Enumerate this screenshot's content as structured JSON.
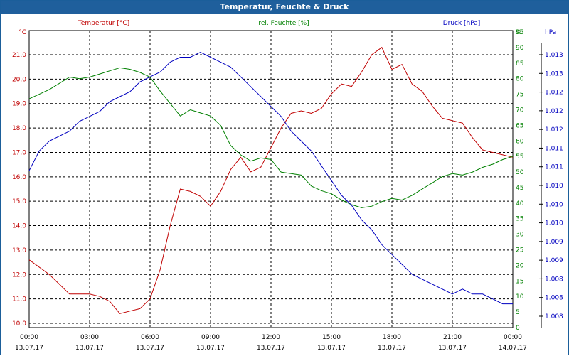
{
  "title": "Temperatur, Feuchte & Druck",
  "colors": {
    "temperature": "#c00000",
    "humidity": "#008000",
    "pressure": "#0000c0",
    "title_bar": "#1f5f9c"
  },
  "chart_data": {
    "type": "line",
    "title": "Temperatur, Feuchte & Druck",
    "grid": true,
    "x_ticks": [
      {
        "time": "00:00",
        "date": "13.07.17"
      },
      {
        "time": "03:00",
        "date": "13.07.17"
      },
      {
        "time": "06:00",
        "date": "13.07.17"
      },
      {
        "time": "09:00",
        "date": "13.07.17"
      },
      {
        "time": "12:00",
        "date": "13.07.17"
      },
      {
        "time": "15:00",
        "date": "13.07.17"
      },
      {
        "time": "18:00",
        "date": "13.07.17"
      },
      {
        "time": "21:00",
        "date": "13.07.17"
      },
      {
        "time": "00:00",
        "date": "14.07.17"
      }
    ],
    "axes": {
      "temperature": {
        "label": "Temperatur [°C]",
        "unit": "°C",
        "range": [
          10.0,
          21.0
        ],
        "ticks": [
          "10.0",
          "11.0",
          "12.0",
          "13.0",
          "14.0",
          "15.0",
          "16.0",
          "17.0",
          "18.0",
          "19.0",
          "20.0",
          "21.0"
        ]
      },
      "humidity": {
        "label": "rel. Feuchte [%]",
        "unit": "%",
        "range": [
          0,
          95
        ],
        "ticks": [
          "0",
          "5",
          "10",
          "15",
          "20",
          "25",
          "30",
          "35",
          "40",
          "45",
          "50",
          "55",
          "60",
          "65",
          "70",
          "75",
          "80",
          "85",
          "90",
          "95"
        ]
      },
      "pressure": {
        "label": "Druck [hPa]",
        "unit": "hPa",
        "ticks": [
          "1.008",
          "1.008",
          "1.008",
          "1.009",
          "1.009",
          "1.010",
          "1.010",
          "1.010",
          "1.011",
          "1.011",
          "1.012",
          "1.012",
          "1.012",
          "1.013",
          "1.013"
        ]
      }
    },
    "series": [
      {
        "key": "temperature",
        "name": "Temperatur [°C]",
        "x": [
          "13.07.17 00:00",
          "13.07.17 00:30",
          "13.07.17 01:00",
          "13.07.17 01:30",
          "13.07.17 02:00",
          "13.07.17 02:30",
          "13.07.17 03:00",
          "13.07.17 03:30",
          "13.07.17 04:00",
          "13.07.17 04:30",
          "13.07.17 05:00",
          "13.07.17 05:30",
          "13.07.17 06:00",
          "13.07.17 06:30",
          "13.07.17 07:00",
          "13.07.17 07:30",
          "13.07.17 08:00",
          "13.07.17 08:30",
          "13.07.17 09:00",
          "13.07.17 09:30",
          "13.07.17 10:00",
          "13.07.17 10:30",
          "13.07.17 11:00",
          "13.07.17 11:30",
          "13.07.17 12:00",
          "13.07.17 12:30",
          "13.07.17 13:00",
          "13.07.17 13:30",
          "13.07.17 14:00",
          "13.07.17 14:30",
          "13.07.17 15:00",
          "13.07.17 15:30",
          "13.07.17 16:00",
          "13.07.17 16:30",
          "13.07.17 17:00",
          "13.07.17 17:30",
          "13.07.17 18:00",
          "13.07.17 18:30",
          "13.07.17 19:00",
          "13.07.17 19:30",
          "13.07.17 20:00",
          "13.07.17 20:30",
          "13.07.17 21:00",
          "13.07.17 21:30",
          "13.07.17 22:00",
          "13.07.17 22:30",
          "13.07.17 23:00",
          "13.07.17 23:30",
          "14.07.17 00:00"
        ],
        "values": [
          12.6,
          12.3,
          12.0,
          11.6,
          11.2,
          11.2,
          11.2,
          11.1,
          10.9,
          10.4,
          10.5,
          10.6,
          11.0,
          12.2,
          14.0,
          15.5,
          15.4,
          15.2,
          14.8,
          15.4,
          16.3,
          16.8,
          16.2,
          16.4,
          17.2,
          18.0,
          18.6,
          18.7,
          18.6,
          18.8,
          19.4,
          19.8,
          19.7,
          20.3,
          21.0,
          21.3,
          20.4,
          20.6,
          19.8,
          19.5,
          18.9,
          18.4,
          18.3,
          18.2,
          17.6,
          17.1,
          17.0,
          16.9,
          16.8
        ]
      },
      {
        "key": "humidity",
        "name": "rel. Feuchte [%]",
        "x": [
          "13.07.17 00:00",
          "13.07.17 00:30",
          "13.07.17 01:00",
          "13.07.17 01:30",
          "13.07.17 02:00",
          "13.07.17 02:30",
          "13.07.17 03:00",
          "13.07.17 03:30",
          "13.07.17 04:00",
          "13.07.17 04:30",
          "13.07.17 05:00",
          "13.07.17 05:30",
          "13.07.17 06:00",
          "13.07.17 06:30",
          "13.07.17 07:00",
          "13.07.17 07:30",
          "13.07.17 08:00",
          "13.07.17 08:30",
          "13.07.17 09:00",
          "13.07.17 09:30",
          "13.07.17 10:00",
          "13.07.17 10:30",
          "13.07.17 11:00",
          "13.07.17 11:30",
          "13.07.17 12:00",
          "13.07.17 12:30",
          "13.07.17 13:00",
          "13.07.17 13:30",
          "13.07.17 14:00",
          "13.07.17 14:30",
          "13.07.17 15:00",
          "13.07.17 15:30",
          "13.07.17 16:00",
          "13.07.17 16:30",
          "13.07.17 17:00",
          "13.07.17 17:30",
          "13.07.17 18:00",
          "13.07.17 18:30",
          "13.07.17 19:00",
          "13.07.17 19:30",
          "13.07.17 20:00",
          "13.07.17 20:30",
          "13.07.17 21:00",
          "13.07.17 21:30",
          "13.07.17 22:00",
          "13.07.17 22:30",
          "13.07.17 23:00",
          "13.07.17 23:30",
          "14.07.17 00:00"
        ],
        "values": [
          73.5,
          75.0,
          76.5,
          78.5,
          80.5,
          80.0,
          80.5,
          81.5,
          82.5,
          83.5,
          83.0,
          82.0,
          80.5,
          76.0,
          72.0,
          68.0,
          70.0,
          69.0,
          68.0,
          65.0,
          58.5,
          55.5,
          53.5,
          54.5,
          54.0,
          50.0,
          49.5,
          49.0,
          45.5,
          44.0,
          43.0,
          41.0,
          39.5,
          38.5,
          39.0,
          40.5,
          41.5,
          41.0,
          42.5,
          44.5,
          46.5,
          48.5,
          49.5,
          49.0,
          50.0,
          51.5,
          52.5,
          54.0,
          55.0
        ]
      },
      {
        "key": "pressure",
        "name": "Druck [hPa]",
        "x": [
          "13.07.17 00:00",
          "13.07.17 00:30",
          "13.07.17 01:00",
          "13.07.17 01:30",
          "13.07.17 02:00",
          "13.07.17 02:30",
          "13.07.17 03:00",
          "13.07.17 03:30",
          "13.07.17 04:00",
          "13.07.17 04:30",
          "13.07.17 05:00",
          "13.07.17 05:30",
          "13.07.17 06:00",
          "13.07.17 06:30",
          "13.07.17 07:00",
          "13.07.17 07:30",
          "13.07.17 08:00",
          "13.07.17 08:30",
          "13.07.17 09:00",
          "13.07.17 09:30",
          "13.07.17 10:00",
          "13.07.17 10:30",
          "13.07.17 11:00",
          "13.07.17 11:30",
          "13.07.17 12:00",
          "13.07.17 12:30",
          "13.07.17 13:00",
          "13.07.17 13:30",
          "13.07.17 14:00",
          "13.07.17 14:30",
          "13.07.17 15:00",
          "13.07.17 15:30",
          "13.07.17 16:00",
          "13.07.17 16:30",
          "13.07.17 17:00",
          "13.07.17 17:30",
          "13.07.17 18:00",
          "13.07.17 18:30",
          "13.07.17 19:00",
          "13.07.17 19:30",
          "13.07.17 20:00",
          "13.07.17 20:30",
          "13.07.17 21:00",
          "13.07.17 21:30",
          "13.07.17 22:00",
          "13.07.17 22:30",
          "13.07.17 23:00",
          "13.07.17 23:30",
          "14.07.17 00:00"
        ],
        "values": [
          1.0111,
          1.0115,
          1.0117,
          1.0118,
          1.0119,
          1.0121,
          1.0122,
          1.0123,
          1.0125,
          1.0126,
          1.0127,
          1.0129,
          1.013,
          1.0131,
          1.0133,
          1.0134,
          1.0134,
          1.0135,
          1.0134,
          1.0133,
          1.0132,
          1.013,
          1.0128,
          1.0126,
          1.0124,
          1.0122,
          1.0119,
          1.0117,
          1.0115,
          1.0112,
          1.0109,
          1.0106,
          1.0104,
          1.0101,
          1.0099,
          1.0096,
          1.0094,
          1.0092,
          1.009,
          1.0089,
          1.0088,
          1.0087,
          1.0086,
          1.0087,
          1.0086,
          1.0086,
          1.0085,
          1.0084,
          1.0084
        ]
      }
    ]
  }
}
